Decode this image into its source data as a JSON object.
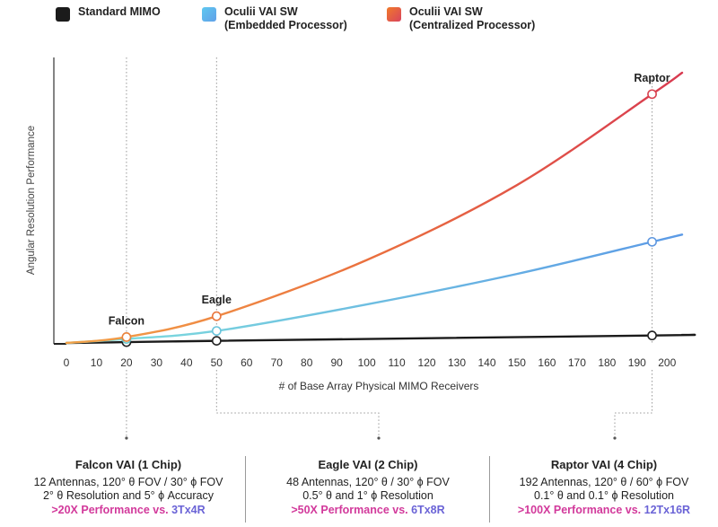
{
  "legend": [
    {
      "label_lines": [
        "Standard MIMO"
      ],
      "color": "#1b1b1b"
    },
    {
      "label_lines": [
        "Oculii VAI SW",
        "(Embedded Processor)"
      ],
      "gradient": [
        "#5ec8f0",
        "#61a0e8"
      ]
    },
    {
      "label_lines": [
        "Oculii VAI SW",
        "(Centralized Processor)"
      ],
      "gradient": [
        "#f07a2a",
        "#d9445e"
      ]
    }
  ],
  "chart_data": {
    "type": "line",
    "title": "",
    "xlabel": "# of Base Array Physical MIMO Receivers",
    "ylabel": "Angular Resolution Performance",
    "xlim": [
      0,
      205
    ],
    "ylim": [
      0,
      100
    ],
    "xticks": [
      0,
      10,
      20,
      30,
      40,
      50,
      60,
      70,
      80,
      90,
      100,
      110,
      120,
      130,
      140,
      150,
      160,
      170,
      180,
      190,
      200
    ],
    "series": [
      {
        "name": "Standard MIMO",
        "color": "#1b1b1b",
        "x": [
          0,
          20,
          50,
          195,
          205
        ],
        "y": [
          0,
          0.3,
          0.8,
          2.8,
          3
        ]
      },
      {
        "name": "Oculii VAI SW (Embedded Processor)",
        "gradient": [
          "#72d8e0",
          "#5b9fe6"
        ],
        "x": [
          0,
          20,
          50,
          100,
          150,
          195,
          205
        ],
        "y": [
          0,
          1.5,
          4.5,
          14.4,
          25.8,
          37.8,
          40.5
        ]
      },
      {
        "name": "Oculii VAI SW (Centralized Processor)",
        "gradient": [
          "#f0913a",
          "#d9404f"
        ],
        "x": [
          0,
          20,
          50,
          100,
          150,
          195,
          205
        ],
        "y": [
          0,
          2.2,
          10,
          31,
          59,
          93,
          101
        ]
      }
    ],
    "markers": [
      {
        "label": "Falcon",
        "x": 20,
        "values": [
          0.3,
          1.5,
          2.2
        ]
      },
      {
        "label": "Eagle",
        "x": 50,
        "values": [
          0.8,
          4.5,
          10
        ]
      },
      {
        "label": "Raptor",
        "x": 195,
        "values": [
          2.8,
          37.8,
          93
        ]
      }
    ]
  },
  "panels": [
    {
      "title": "Falcon VAI (1 Chip)",
      "lines": [
        "12 Antennas, 120° θ FOV / 30° ϕ FOV",
        "2° θ Resolution and 5° ϕ Accuracy"
      ],
      "highlight_a": ">20X Performance vs. ",
      "highlight_b": "3Tx4R"
    },
    {
      "title": "Eagle VAI (2 Chip)",
      "lines": [
        "48 Antennas, 120° θ / 30° ϕ FOV",
        "0.5° θ and 1° ϕ Resolution"
      ],
      "highlight_a": ">50X Performance vs. ",
      "highlight_b": "6Tx8R"
    },
    {
      "title": "Raptor VAI (4 Chip)",
      "lines": [
        "192 Antennas, 120° θ / 60° ϕ FOV",
        "0.1° θ and 0.1° ϕ Resolution"
      ],
      "highlight_a": ">100X Performance vs. ",
      "highlight_b": "12Tx16R"
    }
  ]
}
